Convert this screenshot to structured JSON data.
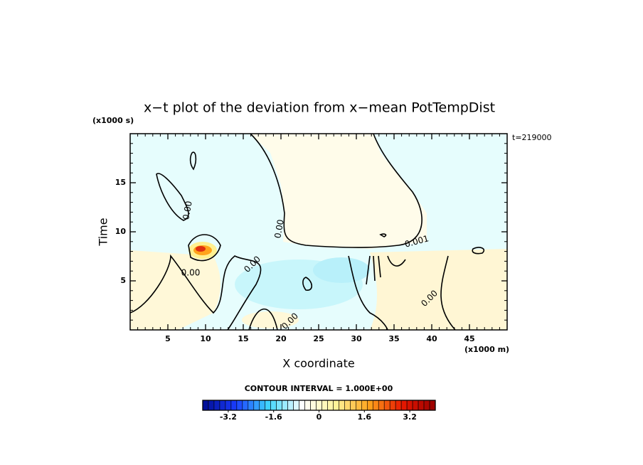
{
  "chart_data": {
    "type": "contour",
    "title": "x−t plot of the deviation from x−mean PotTempDist",
    "y_unit": "(x1000 s)",
    "x_unit": "(x1000 m)",
    "time_note": "t=219000",
    "ylabel": "Time",
    "xlabel": "X coordinate",
    "xlim": [
      0,
      50
    ],
    "ylim": [
      0,
      20
    ],
    "xticks": [
      5,
      10,
      15,
      20,
      25,
      30,
      35,
      40,
      45
    ],
    "yticks": [
      5,
      10,
      15
    ],
    "contour_labels": [
      "0.00",
      "0.00",
      "0.00",
      "0.00",
      "0.00",
      "0.001",
      "0.00"
    ],
    "contour_interval_note": "CONTOUR INTERVAL = 1.000E+00",
    "colorbar": {
      "lim": [
        -4.1,
        4.1
      ],
      "step": 0.2,
      "ticks": [
        -3.2,
        -1.6,
        0,
        1.6,
        3.2
      ],
      "colors": [
        "#000c90",
        "#1a3cff",
        "#40d8ff",
        "#ffffff",
        "#fff49a",
        "#ffa41c",
        "#e81800",
        "#980000"
      ]
    }
  }
}
